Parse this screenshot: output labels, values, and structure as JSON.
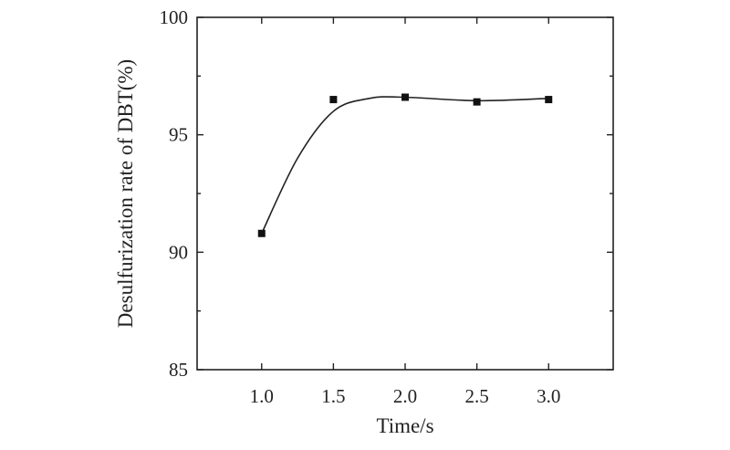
{
  "chart_data": {
    "type": "scatter",
    "xlabel": "Time/s",
    "ylabel": "Desulfurization rate of DBT(%)",
    "xlim": [
      0.55,
      3.45
    ],
    "ylim": [
      85,
      100
    ],
    "xticks": [
      "1.0",
      "1.5",
      "2.0",
      "2.5",
      "3.0"
    ],
    "yticks": [
      "85",
      "90",
      "95",
      "100"
    ],
    "grid": false,
    "legend": "none",
    "series": [
      {
        "x": [
          1.0,
          1.5,
          2.0,
          2.5,
          3.0
        ],
        "y": [
          90.8,
          96.5,
          96.6,
          96.4,
          96.5
        ],
        "marker": "square",
        "fit_curve": "smooth"
      }
    ],
    "colors": {
      "marker": "#111111",
      "line": "#222222",
      "axis": "#222222"
    }
  }
}
